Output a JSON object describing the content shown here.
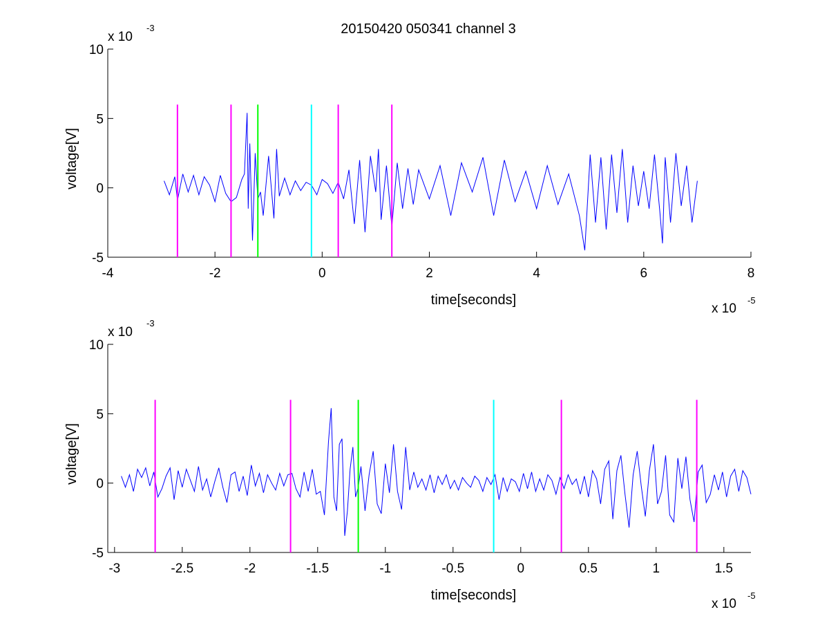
{
  "title": "20150420 050341 channel 3",
  "colors": {
    "signal": "#0000ff",
    "magenta": "#ff00ff",
    "green": "#00ff00",
    "cyan": "#00ffff",
    "axis": "#000000",
    "background": "#ffffff"
  },
  "chart_data": [
    {
      "type": "line",
      "name": "top",
      "xlabel": "time[seconds]",
      "ylabel": "voltage[V]",
      "x_multiplier": "x 10",
      "x_exponent": "-5",
      "y_multiplier": "x 10",
      "y_exponent": "-3",
      "xlim": [
        -4,
        8
      ],
      "ylim": [
        -5,
        10
      ],
      "xticks": [
        "-4",
        "-2",
        "0",
        "2",
        "4",
        "6",
        "8"
      ],
      "yticks": [
        "-5",
        "0",
        "5",
        "10"
      ],
      "grid": false,
      "markers": [
        {
          "x": -2.7,
          "color": "magenta"
        },
        {
          "x": -1.7,
          "color": "magenta"
        },
        {
          "x": -1.2,
          "color": "green"
        },
        {
          "x": -0.2,
          "color": "cyan"
        },
        {
          "x": 0.3,
          "color": "magenta"
        },
        {
          "x": 1.3,
          "color": "magenta"
        }
      ],
      "marker_ylim": [
        -5,
        6
      ],
      "series": [
        {
          "x": [
            -2.95,
            -2.85,
            -2.75,
            -2.7,
            -2.6,
            -2.5,
            -2.4,
            -2.3,
            -2.2,
            -2.1,
            -2.0,
            -1.9,
            -1.8,
            -1.7,
            -1.6,
            -1.5,
            -1.45,
            -1.4,
            -1.38,
            -1.35,
            -1.3,
            -1.25,
            -1.2,
            -1.15,
            -1.1,
            -1.0,
            -0.9,
            -0.85,
            -0.8,
            -0.7,
            -0.6,
            -0.5,
            -0.4,
            -0.3,
            -0.2,
            -0.1,
            0.0,
            0.1,
            0.2,
            0.3,
            0.4,
            0.5,
            0.6,
            0.7,
            0.8,
            0.9,
            1.0,
            1.05,
            1.1,
            1.2,
            1.3,
            1.4,
            1.5,
            1.6,
            1.7,
            1.8,
            2.0,
            2.2,
            2.4,
            2.6,
            2.8,
            3.0,
            3.2,
            3.4,
            3.6,
            3.8,
            4.0,
            4.2,
            4.4,
            4.6,
            4.8,
            4.9,
            5.0,
            5.1,
            5.2,
            5.3,
            5.4,
            5.5,
            5.6,
            5.7,
            5.8,
            5.9,
            6.0,
            6.1,
            6.2,
            6.3,
            6.35,
            6.4,
            6.5,
            6.6,
            6.7,
            6.8,
            6.9,
            7.0
          ],
          "values": [
            0.5,
            -0.5,
            0.8,
            -0.9,
            1.0,
            -0.3,
            0.9,
            -0.5,
            0.8,
            0.2,
            -1.0,
            0.9,
            -0.4,
            -1.0,
            -0.7,
            0.6,
            1.0,
            5.4,
            -1.5,
            3.2,
            -3.8,
            2.5,
            -0.8,
            -0.3,
            -2.0,
            2.3,
            -2.2,
            2.8,
            -0.6,
            0.7,
            -0.5,
            0.5,
            -0.2,
            0.4,
            0.2,
            -0.5,
            0.6,
            0.3,
            -0.4,
            0.4,
            -0.8,
            1.3,
            -2.6,
            2.0,
            -3.2,
            2.3,
            -0.3,
            2.8,
            -2.3,
            1.6,
            -2.8,
            1.8,
            -1.5,
            1.4,
            -1.2,
            1.3,
            -0.8,
            1.6,
            -2.0,
            1.8,
            -0.3,
            2.2,
            -2.0,
            2.0,
            -1.0,
            1.2,
            -1.5,
            1.6,
            -1.2,
            1.0,
            -2.0,
            -4.5,
            2.4,
            -2.5,
            2.2,
            -3.0,
            2.4,
            -1.8,
            2.8,
            -2.5,
            1.6,
            -1.3,
            1.2,
            -1.5,
            2.4,
            -1.7,
            -4.0,
            2.2,
            -2.5,
            2.5,
            -1.3,
            1.6,
            -2.5,
            0.5
          ]
        }
      ]
    },
    {
      "type": "line",
      "name": "bottom",
      "xlabel": "time[seconds]",
      "ylabel": "voltage[V]",
      "x_multiplier": "x 10",
      "x_exponent": "-5",
      "y_multiplier": "x 10",
      "y_exponent": "-3",
      "xlim": [
        -3.05,
        1.7
      ],
      "ylim": [
        -5,
        10
      ],
      "xticks": [
        "-3",
        "-2.5",
        "-2",
        "-1.5",
        "-1",
        "-0.5",
        "0",
        "0.5",
        "1",
        "1.5"
      ],
      "yticks": [
        "-5",
        "0",
        "5",
        "10"
      ],
      "grid": false,
      "markers": [
        {
          "x": -2.7,
          "color": "magenta"
        },
        {
          "x": -1.7,
          "color": "magenta"
        },
        {
          "x": -1.2,
          "color": "green"
        },
        {
          "x": -0.2,
          "color": "cyan"
        },
        {
          "x": 0.3,
          "color": "magenta"
        },
        {
          "x": 1.3,
          "color": "magenta"
        }
      ],
      "marker_ylim": [
        -5,
        6
      ],
      "series": [
        {
          "x": [
            -2.95,
            -2.92,
            -2.89,
            -2.86,
            -2.83,
            -2.8,
            -2.77,
            -2.74,
            -2.71,
            -2.68,
            -2.65,
            -2.62,
            -2.59,
            -2.56,
            -2.53,
            -2.5,
            -2.47,
            -2.44,
            -2.41,
            -2.38,
            -2.35,
            -2.32,
            -2.29,
            -2.26,
            -2.23,
            -2.2,
            -2.17,
            -2.14,
            -2.11,
            -2.08,
            -2.05,
            -2.02,
            -1.99,
            -1.96,
            -1.93,
            -1.9,
            -1.87,
            -1.84,
            -1.81,
            -1.78,
            -1.75,
            -1.72,
            -1.69,
            -1.66,
            -1.63,
            -1.6,
            -1.57,
            -1.54,
            -1.51,
            -1.48,
            -1.45,
            -1.42,
            -1.4,
            -1.38,
            -1.36,
            -1.34,
            -1.32,
            -1.3,
            -1.28,
            -1.26,
            -1.24,
            -1.22,
            -1.2,
            -1.18,
            -1.15,
            -1.12,
            -1.09,
            -1.06,
            -1.03,
            -1.0,
            -0.97,
            -0.94,
            -0.91,
            -0.88,
            -0.85,
            -0.82,
            -0.79,
            -0.76,
            -0.73,
            -0.7,
            -0.67,
            -0.64,
            -0.61,
            -0.58,
            -0.55,
            -0.52,
            -0.49,
            -0.46,
            -0.43,
            -0.4,
            -0.37,
            -0.34,
            -0.31,
            -0.28,
            -0.25,
            -0.22,
            -0.19,
            -0.16,
            -0.13,
            -0.1,
            -0.07,
            -0.04,
            -0.01,
            0.02,
            0.05,
            0.08,
            0.11,
            0.14,
            0.17,
            0.2,
            0.23,
            0.26,
            0.29,
            0.32,
            0.35,
            0.38,
            0.41,
            0.44,
            0.47,
            0.5,
            0.53,
            0.56,
            0.59,
            0.62,
            0.65,
            0.68,
            0.71,
            0.74,
            0.77,
            0.8,
            0.83,
            0.86,
            0.89,
            0.92,
            0.95,
            0.98,
            1.01,
            1.04,
            1.07,
            1.1,
            1.13,
            1.16,
            1.19,
            1.22,
            1.25,
            1.28,
            1.31,
            1.34,
            1.37,
            1.4,
            1.43,
            1.46,
            1.49,
            1.52,
            1.55,
            1.58,
            1.61,
            1.64,
            1.67,
            1.7
          ],
          "values": [
            0.5,
            -0.3,
            0.6,
            -0.6,
            1.0,
            0.4,
            1.1,
            -0.2,
            0.8,
            -1.0,
            -0.4,
            0.5,
            1.1,
            -1.2,
            0.9,
            -0.3,
            1.0,
            0.2,
            -0.6,
            1.2,
            -0.5,
            0.3,
            -1.0,
            0.1,
            1.1,
            -0.3,
            -1.4,
            0.6,
            0.8,
            -0.6,
            0.5,
            -0.9,
            1.3,
            -0.2,
            0.7,
            -0.7,
            0.6,
            0.0,
            -0.5,
            0.7,
            -0.2,
            0.6,
            0.7,
            -0.4,
            -1.0,
            0.8,
            -0.6,
            1.0,
            -0.8,
            -0.6,
            -2.3,
            3.0,
            5.4,
            -1.0,
            -2.0,
            2.8,
            3.2,
            -3.8,
            -2.0,
            1.0,
            2.6,
            -1.0,
            -0.3,
            1.2,
            -2.0,
            0.6,
            2.3,
            -1.5,
            -2.2,
            1.4,
            -0.7,
            2.8,
            -0.6,
            -1.9,
            2.6,
            -0.5,
            0.8,
            -0.3,
            0.3,
            -0.5,
            0.6,
            -0.7,
            0.5,
            -0.1,
            0.6,
            -0.4,
            0.2,
            -0.5,
            0.4,
            0.0,
            -0.3,
            0.5,
            0.2,
            -0.6,
            0.4,
            -0.1,
            0.6,
            -1.2,
            0.4,
            -0.6,
            0.3,
            0.1,
            -0.6,
            0.7,
            -0.4,
            0.8,
            -0.6,
            0.3,
            -0.5,
            0.6,
            0.2,
            -0.8,
            0.4,
            -0.4,
            0.6,
            -0.1,
            0.3,
            -0.8,
            0.5,
            -1.0,
            0.9,
            0.3,
            -1.5,
            1.0,
            1.6,
            -2.6,
            0.9,
            2.0,
            -0.8,
            -3.2,
            0.6,
            2.3,
            -0.2,
            -2.4,
            0.9,
            2.8,
            -1.5,
            -0.6,
            2.0,
            -2.3,
            -2.8,
            1.8,
            -0.4,
            1.9,
            -1.2,
            -2.8,
            0.8,
            1.3,
            -1.4,
            -0.8,
            0.6,
            -0.5,
            0.8,
            -1.0,
            0.5,
            1.0,
            -0.6,
            0.9,
            0.4,
            -0.8
          ]
        }
      ]
    }
  ]
}
